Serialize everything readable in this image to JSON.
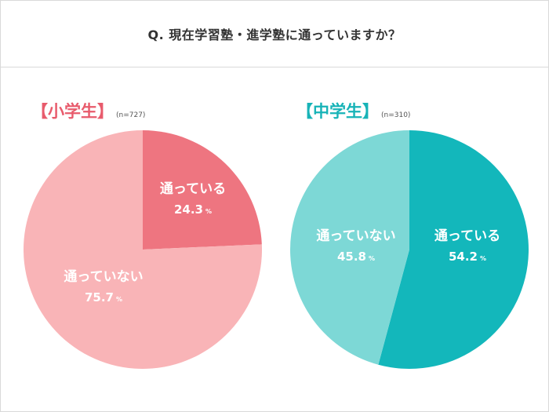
{
  "question": "Q. 現在学習塾・進学塾に通っていますか？",
  "colors": {
    "elementary_accent": "#e85b6c",
    "elementary_attending": "#ee7580",
    "elementary_not_attending": "#f9b4b7",
    "junior_accent": "#17b3b7",
    "junior_attending": "#13b7bb",
    "junior_not_attending": "#7dd8d6"
  },
  "chart_data": [
    {
      "type": "pie",
      "title": "【小学生】",
      "sample": "(n=727)",
      "slices": [
        {
          "label": "通っている",
          "value": 24.3,
          "display": "24.3",
          "unit": "%"
        },
        {
          "label": "通っていない",
          "value": 75.7,
          "display": "75.7",
          "unit": "%"
        }
      ]
    },
    {
      "type": "pie",
      "title": "【中学生】",
      "sample": "(n=310)",
      "slices": [
        {
          "label": "通っている",
          "value": 54.2,
          "display": "54.2",
          "unit": "%"
        },
        {
          "label": "通っていない",
          "value": 45.8,
          "display": "45.8",
          "unit": "%"
        }
      ]
    }
  ]
}
